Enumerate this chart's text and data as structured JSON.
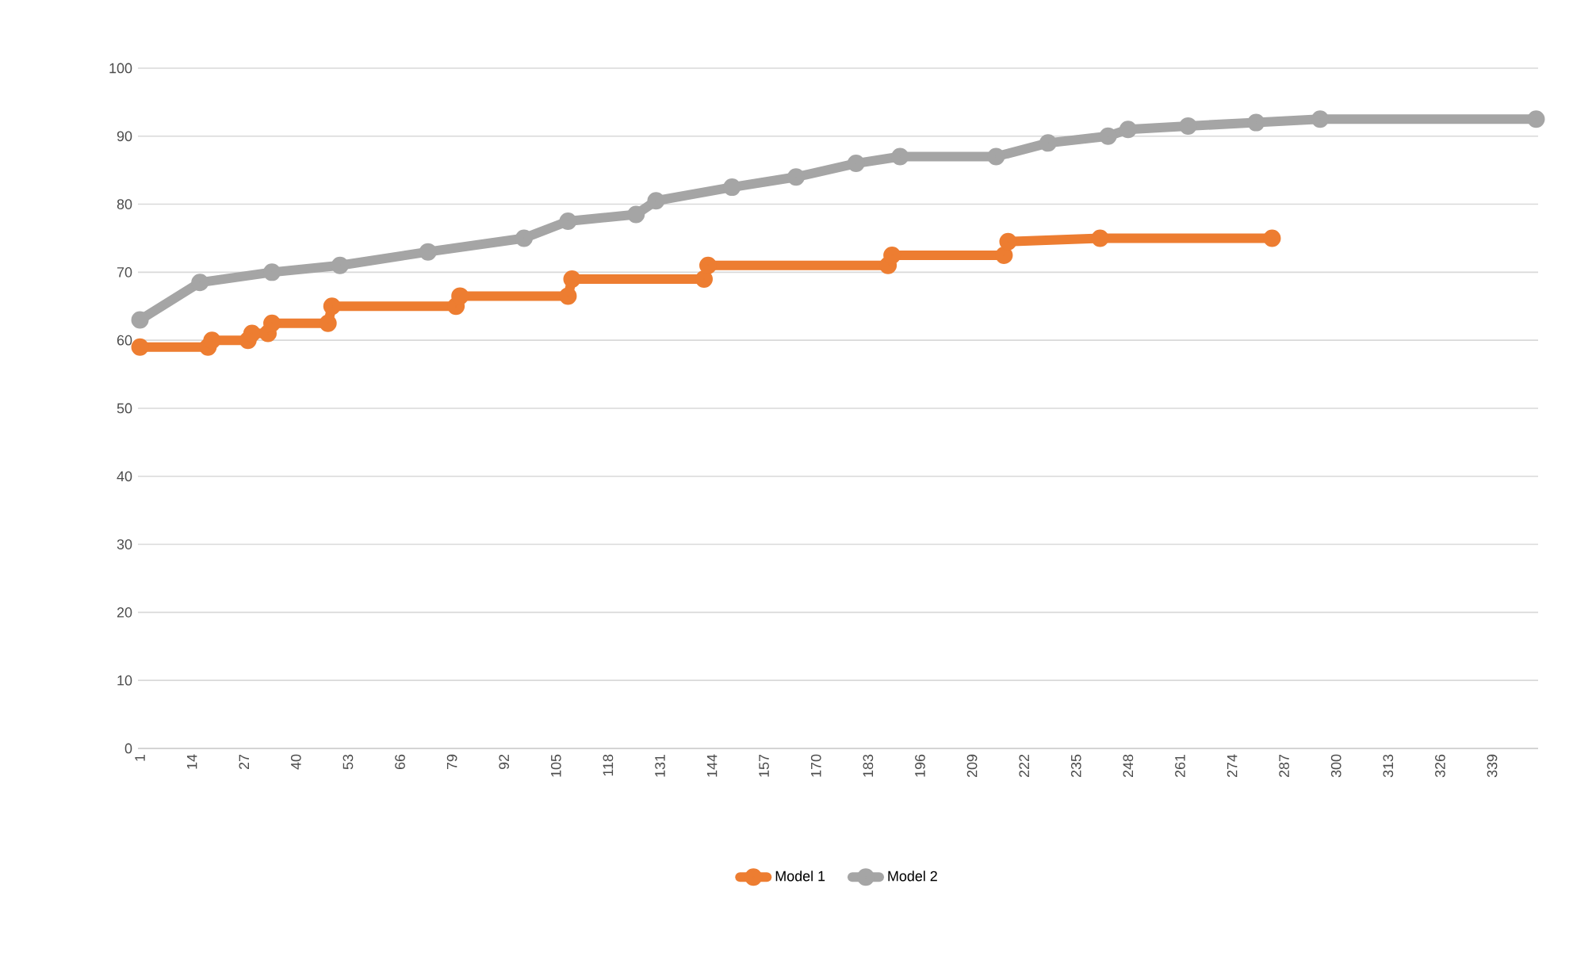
{
  "chart_data": {
    "type": "line",
    "xlim": [
      0.5,
      350.5
    ],
    "xticks": [
      1,
      14,
      27,
      40,
      53,
      66,
      79,
      92,
      105,
      118,
      131,
      144,
      157,
      170,
      183,
      196,
      209,
      222,
      235,
      248,
      261,
      274,
      287,
      300,
      313,
      326,
      339
    ],
    "ylim": [
      0,
      100
    ],
    "yticks": [
      0,
      10,
      20,
      30,
      40,
      50,
      60,
      70,
      80,
      90,
      100
    ],
    "grid": "y",
    "legend": "bottom",
    "marker": "circle",
    "line_style": "solid",
    "series": [
      {
        "name": "Model 1",
        "color": "#ed7d31",
        "x": [
          1,
          18,
          19,
          28,
          29,
          33,
          34,
          48,
          49,
          80,
          81,
          108,
          109,
          142,
          143,
          188,
          189,
          217,
          218,
          241,
          284
        ],
        "values": [
          59,
          59,
          60,
          60,
          61,
          61,
          62.5,
          62.5,
          65,
          65,
          66.5,
          66.5,
          69,
          69,
          71,
          71,
          72.5,
          72.5,
          74.5,
          75,
          75
        ]
      },
      {
        "name": "Model 2",
        "color": "#a5a5a5",
        "x": [
          1,
          16,
          34,
          51,
          73,
          97,
          108,
          125,
          130,
          149,
          165,
          180,
          191,
          215,
          228,
          243,
          248,
          263,
          280,
          296,
          350
        ],
        "values": [
          63,
          68.5,
          70,
          71,
          73,
          75,
          77.5,
          78.5,
          80.5,
          82.5,
          84,
          86,
          87,
          87,
          89,
          90,
          91,
          91.5,
          92,
          92.5,
          92.5
        ]
      }
    ]
  }
}
